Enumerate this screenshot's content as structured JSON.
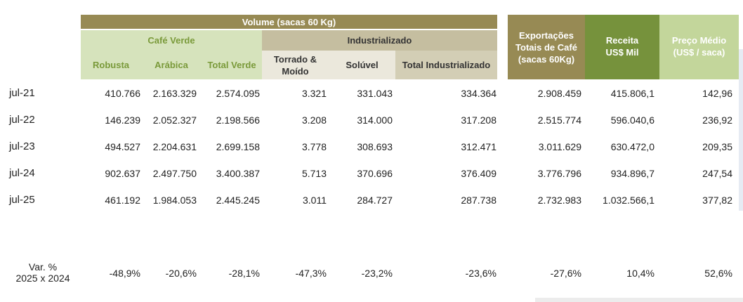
{
  "header": {
    "volume": "Volume (sacas 60 Kg)",
    "cafe_verde": "Café Verde",
    "industrializado": "Industrializado",
    "robusta": "Robusta",
    "arabica": "Arábica",
    "total_verde": "Total Verde",
    "torrado_moido": "Torrado & Moído",
    "soluvel": "Solúvel",
    "total_industrializado": "Total Industrializado",
    "exportacoes": "Exportações Totais de Café (sacas 60Kg)",
    "receita": "Receita US$ Mil",
    "preco_medio": "Preço Médio (US$ / saca)"
  },
  "rows": [
    {
      "label": "jul-21",
      "robusta": "410.766",
      "arabica": "2.163.329",
      "total_verde": "2.574.095",
      "torrado": "3.321",
      "soluvel": "331.043",
      "total_ind": "334.364",
      "exportacoes": "2.908.459",
      "receita": "415.806,1",
      "preco": "142,96"
    },
    {
      "label": "jul-22",
      "robusta": "146.239",
      "arabica": "2.052.327",
      "total_verde": "2.198.566",
      "torrado": "3.208",
      "soluvel": "314.000",
      "total_ind": "317.208",
      "exportacoes": "2.515.774",
      "receita": "596.040,6",
      "preco": "236,92"
    },
    {
      "label": "jul-23",
      "robusta": "494.527",
      "arabica": "2.204.631",
      "total_verde": "2.699.158",
      "torrado": "3.778",
      "soluvel": "308.693",
      "total_ind": "312.471",
      "exportacoes": "3.011.629",
      "receita": "630.472,0",
      "preco": "209,35"
    },
    {
      "label": "jul-24",
      "robusta": "902.637",
      "arabica": "2.497.750",
      "total_verde": "3.400.387",
      "torrado": "5.713",
      "soluvel": "370.696",
      "total_ind": "376.409",
      "exportacoes": "3.776.796",
      "receita": "934.896,7",
      "preco": "247,54"
    },
    {
      "label": "jul-25",
      "robusta": "461.192",
      "arabica": "1.984.053",
      "total_verde": "2.445.245",
      "torrado": "3.011",
      "soluvel": "284.727",
      "total_ind": "287.738",
      "exportacoes": "2.732.983",
      "receita": "1.032.566,1",
      "preco": "377,82"
    }
  ],
  "variation": {
    "label_line1": "Var. %",
    "label_line2": "2025 x 2024",
    "robusta": "-48,9%",
    "arabica": "-20,6%",
    "total_verde": "-28,1%",
    "torrado": "-47,3%",
    "soluvel": "-23,2%",
    "total_ind": "-23,6%",
    "exportacoes": "-27,6%",
    "receita": "10,4%",
    "preco": "52,6%"
  },
  "colors": {
    "volume_bar": "#978a54",
    "green_light": "#d6e3bc",
    "green_text": "#7a9a3a",
    "ind_dark": "#c5bea0",
    "ind_light": "#ebe8dc",
    "ind_text": "#333333",
    "total_ind_bg": "#d3ceb5",
    "exportacoes_bg": "#978a54",
    "receita_bg": "#76923c",
    "preco_bg": "#c3d69b"
  }
}
